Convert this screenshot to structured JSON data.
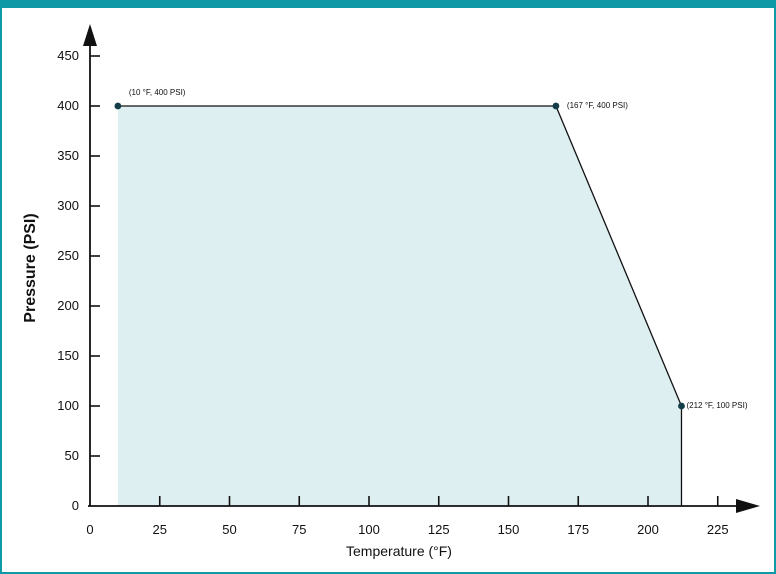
{
  "chart_data": {
    "type": "area",
    "xlabel": "Temperature (°F)",
    "ylabel": "Pressure (PSI)",
    "xlim": [
      0,
      225
    ],
    "ylim": [
      0,
      450
    ],
    "x_ticks": [
      0,
      25,
      50,
      75,
      100,
      125,
      150,
      175,
      200,
      225
    ],
    "y_ticks": [
      0,
      50,
      100,
      150,
      200,
      250,
      300,
      350,
      400,
      450
    ],
    "grid": false,
    "fill_color": "#deeff2",
    "line_color": "#111111",
    "marker_color": "#123c46",
    "outline": [
      {
        "x": 10,
        "y": 0
      },
      {
        "x": 10,
        "y": 400
      },
      {
        "x": 167,
        "y": 400
      },
      {
        "x": 212,
        "y": 100
      },
      {
        "x": 212,
        "y": 0
      }
    ],
    "points": [
      {
        "x": 10,
        "y": 400,
        "label": "(10 °F, 400 PSI)"
      },
      {
        "x": 167,
        "y": 400,
        "label": "(167 °F, 400 PSI)"
      },
      {
        "x": 212,
        "y": 100,
        "label": "(212 °F, 100 PSI)"
      }
    ]
  },
  "colors": {
    "frame_accent": "#0f99a6",
    "axis": "#111111"
  }
}
